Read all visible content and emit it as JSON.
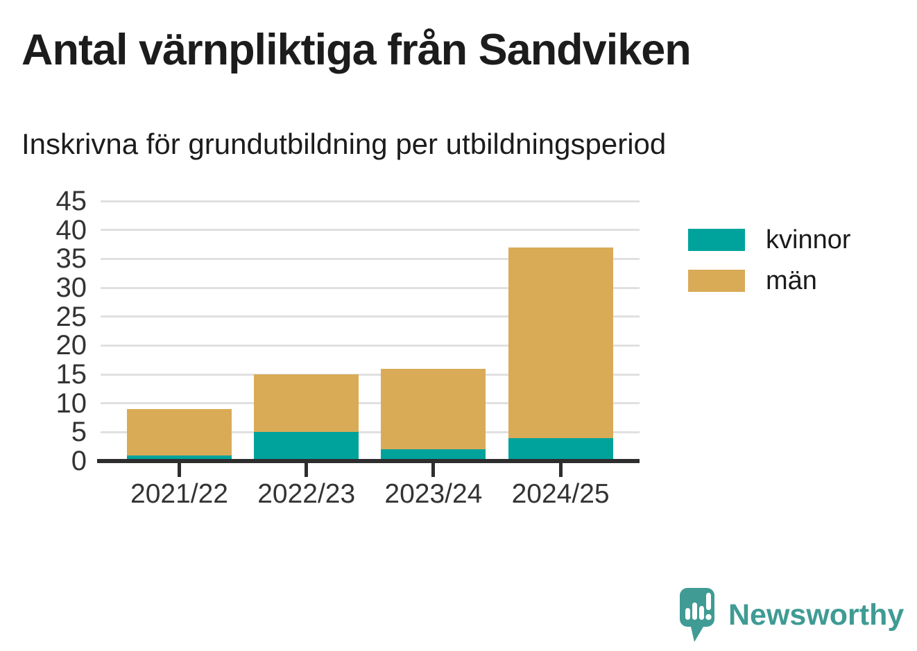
{
  "header": {
    "title": "Antal värnpliktiga från Sandviken",
    "subtitle": "Inskrivna för grundutbildning per utbildningsperiod"
  },
  "chart_data": {
    "type": "bar",
    "stacked": true,
    "title": "Antal värnpliktiga från Sandviken",
    "subtitle": "Inskrivna för grundutbildning per utbildningsperiod",
    "categories": [
      "2021/22",
      "2022/23",
      "2023/24",
      "2024/25"
    ],
    "series": [
      {
        "name": "kvinnor",
        "color": "#00a39b",
        "values": [
          1,
          5,
          2,
          4
        ]
      },
      {
        "name": "män",
        "color": "#d9ab57",
        "values": [
          8,
          10,
          14,
          33
        ]
      }
    ],
    "totals": [
      9,
      15,
      16,
      37
    ],
    "xlabel": "",
    "ylabel": "",
    "ylim": [
      0,
      45
    ],
    "yticks": [
      0,
      5,
      10,
      15,
      20,
      25,
      30,
      35,
      40,
      45
    ],
    "grid": "horizontal",
    "legend_position": "right"
  },
  "colors": {
    "grid": "#e0e0e0",
    "axis": "#2e2e2e",
    "tick_label": "#333333",
    "text": "#1a1a1a"
  },
  "branding": {
    "logo_text": "Newsworthy",
    "logo_color": "#3f9b94"
  }
}
